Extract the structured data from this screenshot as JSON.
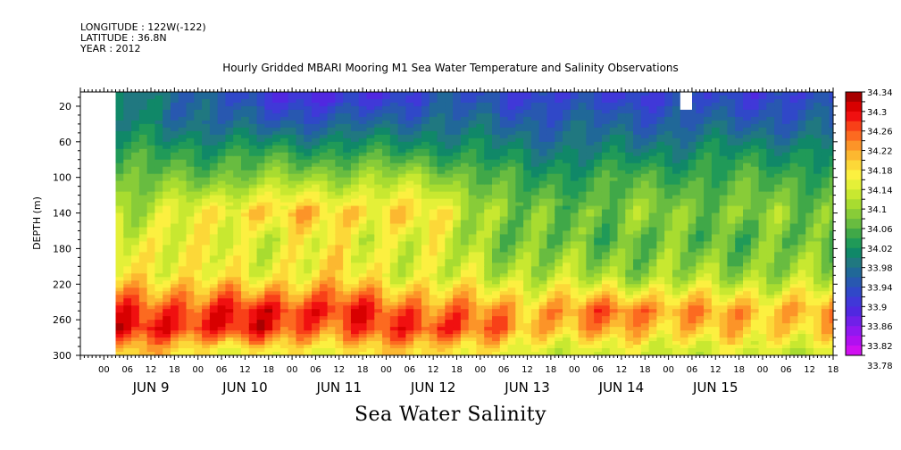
{
  "header": {
    "longitude": "LONGITUDE : 122W(-122)",
    "latitude": "LATITUDE : 36.8N",
    "year": "YEAR : 2012"
  },
  "chart_data": {
    "type": "heatmap",
    "title": "Hourly Gridded MBARI Mooring M1 Sea Water Temperature and Salinity Observations",
    "xlabel": "Sea Water Salinity",
    "ylabel": "DEPTH (m)",
    "y_range": [
      300,
      4
    ],
    "y_ticks": [
      20,
      60,
      100,
      140,
      180,
      220,
      260,
      300
    ],
    "x_range_hours": [
      -6,
      186
    ],
    "x_hour_ticks": [
      "00",
      "06",
      "12",
      "18",
      "00",
      "06",
      "12",
      "18",
      "00",
      "06",
      "12",
      "18",
      "00",
      "06",
      "12",
      "18",
      "00",
      "06",
      "12",
      "18",
      "00",
      "06",
      "12",
      "18",
      "00",
      "06",
      "12",
      "18",
      "00",
      "06",
      "12",
      "18"
    ],
    "x_day_labels": [
      "JUN  9",
      "JUN 10",
      "JUN 11",
      "JUN 12",
      "JUN 13",
      "JUN 14",
      "JUN 15"
    ],
    "data_start_hour": 3,
    "colorbar": {
      "levels": [
        "34.34",
        "34.3",
        "34.26",
        "34.22",
        "34.18",
        "34.14",
        "34.1",
        "34.06",
        "34.02",
        "33.98",
        "33.94",
        "33.9",
        "33.86",
        "33.82",
        "33.78"
      ],
      "colors": [
        "#a80000",
        "#d80000",
        "#f01010",
        "#f84018",
        "#fc6a20",
        "#fc9428",
        "#fcb830",
        "#fcd838",
        "#fcf040",
        "#e4f038",
        "#c8e830",
        "#a8dc30",
        "#88cc38",
        "#68bc40",
        "#40a848",
        "#209a58",
        "#108868",
        "#207880",
        "#206898",
        "#2858b0",
        "#3048c8",
        "#4038d8",
        "#5028e0",
        "#7020e8",
        "#9018f0",
        "#b010f0",
        "#d010f0"
      ]
    },
    "profiles": [
      {
        "name": "Jun 9",
        "values": [
          33.98,
          33.98,
          34.02,
          34.06,
          34.12,
          34.16,
          34.18,
          34.28,
          34.3,
          34.2
        ]
      },
      {
        "name": "Jun 10",
        "values": [
          33.9,
          33.94,
          34.02,
          34.08,
          34.2,
          34.14,
          34.16,
          34.3,
          34.3,
          34.16
        ]
      },
      {
        "name": "Jun 11",
        "values": [
          33.86,
          33.94,
          34.02,
          34.1,
          34.2,
          34.16,
          34.18,
          34.3,
          34.26,
          34.18
        ]
      },
      {
        "name": "Jun 12",
        "values": [
          33.92,
          33.96,
          34.02,
          34.1,
          34.18,
          34.14,
          34.14,
          34.26,
          34.3,
          34.2
        ]
      },
      {
        "name": "Jun 13",
        "values": [
          33.9,
          33.94,
          33.98,
          34.02,
          34.06,
          34.06,
          34.12,
          34.22,
          34.22,
          34.14
        ]
      },
      {
        "name": "Jun 14",
        "values": [
          33.9,
          33.94,
          33.98,
          34.04,
          34.08,
          34.06,
          34.1,
          34.26,
          34.22,
          34.14
        ]
      },
      {
        "name": "Jun 15",
        "values": [
          33.9,
          33.94,
          34.0,
          34.04,
          34.08,
          34.06,
          34.1,
          34.22,
          34.2,
          34.14
        ]
      }
    ],
    "profile_depths": [
      10,
      40,
      70,
      100,
      140,
      170,
      210,
      250,
      270,
      295
    ]
  }
}
